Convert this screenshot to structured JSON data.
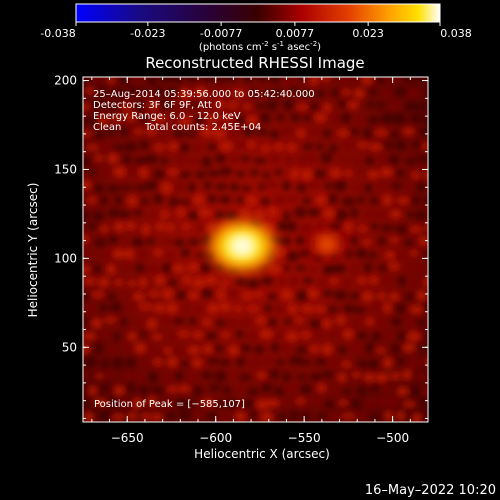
{
  "colorbar": {
    "ticks": [
      "-0.038",
      "-0.023",
      "-0.0077",
      "0.0077",
      "0.023",
      "0.038"
    ],
    "tick_values": [
      -0.038,
      -0.023,
      -0.0077,
      0.0077,
      0.023,
      0.038
    ],
    "range": [
      -0.038,
      0.038
    ],
    "units_prefix": "(photons cm",
    "units_exp1": "-2",
    "units_mid": " s",
    "units_exp2": "-1",
    "units_mid2": " asec",
    "units_exp3": "-2",
    "units_suffix": ")"
  },
  "chart_data": {
    "type": "heatmap",
    "title": "Reconstructed RHESSI Image",
    "xlabel": "Heliocentric X (arcsec)",
    "ylabel": "Heliocentric Y (arcsec)",
    "xlim": [
      -675,
      -480
    ],
    "ylim": [
      8,
      202
    ],
    "x_ticks": [
      -650,
      -600,
      -550,
      -500
    ],
    "x_tick_labels": [
      "−650",
      "−600",
      "−550",
      "−500"
    ],
    "y_ticks": [
      50,
      100,
      150,
      200
    ],
    "y_tick_labels": [
      "50",
      "100",
      "150",
      "200"
    ],
    "colormap": "rainbow-heat (blue-purple-red-orange-yellow-white)",
    "peak_position": [
      -585,
      107
    ],
    "sources": [
      {
        "x": -585,
        "y": 107,
        "value": 0.038
      },
      {
        "x": -537,
        "y": 108,
        "value": 0.014
      }
    ],
    "annotations": {
      "line1": "25–Aug–2014 05:39:56.000 to 05:42:40.000",
      "line2": "Detectors: 3F 6F 9F, Att 0",
      "line3": "Energy Range: 6.0 – 12.0 keV",
      "line4_a": "Clean",
      "line4_b": "Total counts: 2.45E+04",
      "peak": "Position of Peak = [−585,107]"
    }
  },
  "timestamp": "16–May–2022 10:20"
}
